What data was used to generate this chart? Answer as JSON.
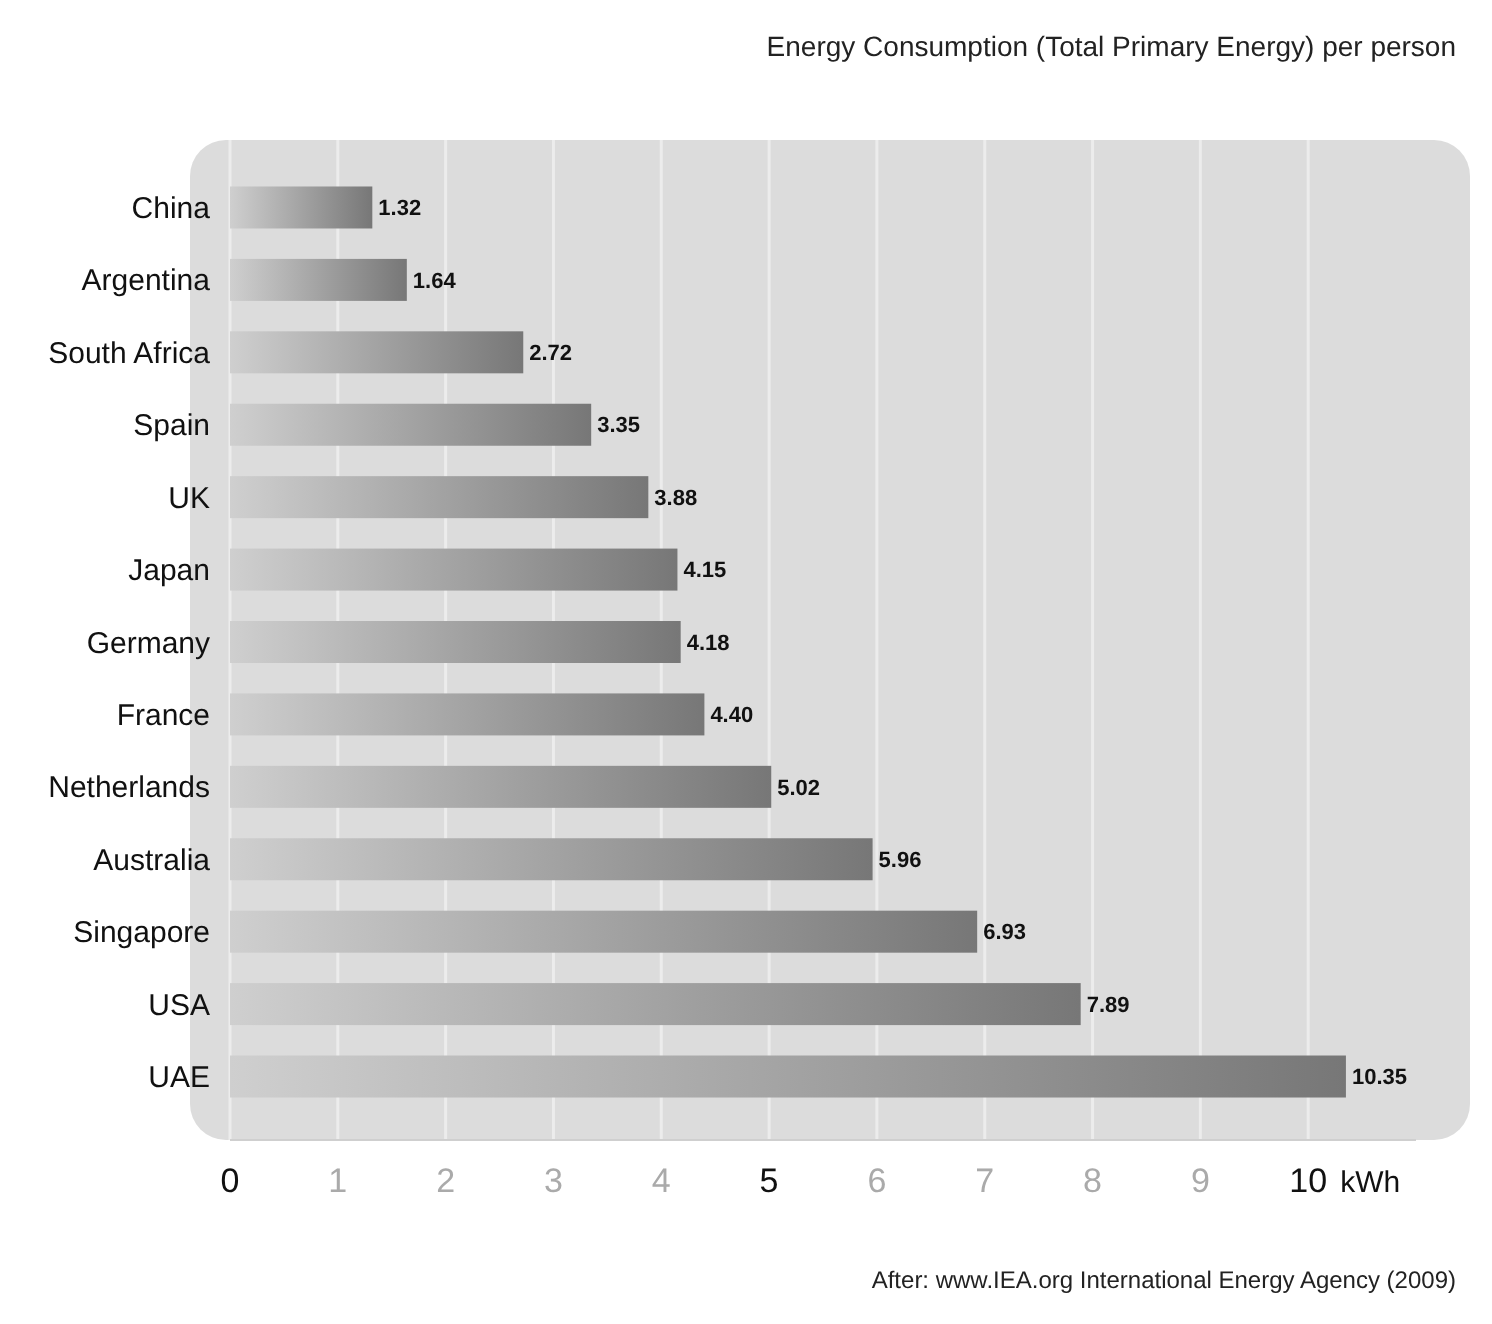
{
  "chart_data": {
    "type": "bar",
    "orientation": "horizontal",
    "title": "Energy Consumption (Total Primary Energy) per person",
    "categories": [
      "China",
      "Argentina",
      "South Africa",
      "Spain",
      "UK",
      "Japan",
      "Germany",
      "France",
      "Netherlands",
      "Australia",
      "Singapore",
      "USA",
      "UAE"
    ],
    "values": [
      1.32,
      1.64,
      2.72,
      3.35,
      3.88,
      4.15,
      4.18,
      4.4,
      5.02,
      5.96,
      6.93,
      7.89,
      10.35
    ],
    "value_labels": [
      "1.32",
      "1.64",
      "2.72",
      "3.35",
      "3.88",
      "4.15",
      "4.18",
      "4.40",
      "5.02",
      "5.96",
      "6.93",
      "7.89",
      "10.35"
    ],
    "color": "#777777",
    "xlim": [
      0,
      11
    ],
    "xticks": [
      0,
      1,
      2,
      3,
      4,
      5,
      6,
      7,
      8,
      9,
      10
    ],
    "xlabel": "kWh",
    "grid": "x",
    "annotations": [
      "After: www.IEA.org  International Energy Agency (2009)"
    ]
  }
}
